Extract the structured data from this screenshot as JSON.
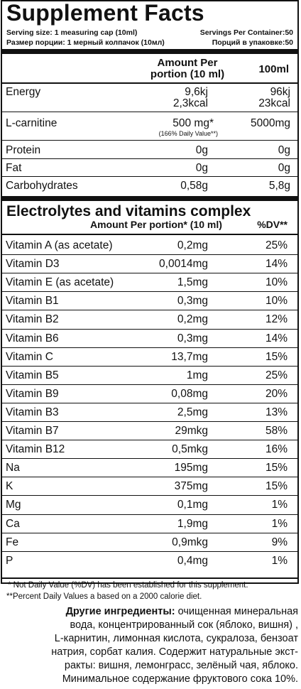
{
  "title": "Supplement Facts",
  "serving": {
    "size_en": "Serving size: 1 measuring cap (10ml)",
    "servings_en": "Servings Per Container:50",
    "size_ru": "Размер порции: 1 мерный колпачок (10мл)",
    "servings_ru": "Порций в упаковке:50"
  },
  "header": {
    "amount_line1": "Amount Per",
    "amount_line2": "portion (10 ml)",
    "per100": "100ml"
  },
  "nutrients": [
    {
      "name": "Energy",
      "amount1": "9,6kj",
      "amount2": "2,3kcal",
      "per100_1": "96kj",
      "per100_2": "23kcal"
    },
    {
      "name": "L-carnitine",
      "amount1": "500 mg*",
      "note": "(166% Daily Value**)",
      "per100_1": "5000mg"
    },
    {
      "name": "Protein",
      "amount1": "0g",
      "per100_1": "0g"
    },
    {
      "name": "Fat",
      "amount1": "0g",
      "per100_1": "0g"
    },
    {
      "name": "Carbohydrates",
      "amount1": "0,58g",
      "per100_1": "5,8g"
    }
  ],
  "electrolytes": {
    "title": "Electrolytes and vitamins complex",
    "col_amount": "Amount Per portion* (10 ml)",
    "col_dv": "%DV**",
    "rows": [
      {
        "name": "Vitamin A (as acetate)",
        "amount": "0,2mg",
        "dv": "25%"
      },
      {
        "name": "Vitamin D3",
        "amount": "0,0014mg",
        "dv": "14%"
      },
      {
        "name": "Vitamin E (as acetate)",
        "amount": "1,5mg",
        "dv": "10%"
      },
      {
        "name": "Vitamin B1",
        "amount": "0,3mg",
        "dv": "10%"
      },
      {
        "name": "Vitamin B2",
        "amount": "0,2mg",
        "dv": "12%"
      },
      {
        "name": "Vitamin B6",
        "amount": "0,3mg",
        "dv": "14%"
      },
      {
        "name": "Vitamin C",
        "amount": "13,7mg",
        "dv": "15%"
      },
      {
        "name": "Vitamin B5",
        "amount": "1mg",
        "dv": "25%"
      },
      {
        "name": "Vitamin B9",
        "amount": "0,08mg",
        "dv": "20%"
      },
      {
        "name": "Vitamin B3",
        "amount": "2,5mg",
        "dv": "13%"
      },
      {
        "name": "Vitamin B7",
        "amount": "29mkg",
        "dv": "58%"
      },
      {
        "name": "Vitamin B12",
        "amount": "0,5mkg",
        "dv": "16%"
      },
      {
        "name": "Na",
        "amount": "195mg",
        "dv": "15%"
      },
      {
        "name": "K",
        "amount": "375mg",
        "dv": "15%"
      },
      {
        "name": "Mg",
        "amount": "0,1mg",
        "dv": "1%"
      },
      {
        "name": "Ca",
        "amount": "1,9mg",
        "dv": "1%"
      },
      {
        "name": "Fe",
        "amount": "0,9mkg",
        "dv": "9%"
      },
      {
        "name": "P",
        "amount": "0,4mg",
        "dv": "1%"
      }
    ]
  },
  "footnotes": {
    "note1": "* Not Daily Value (%DV) has been established for this supplement.",
    "note2": "**Percent Daily Values a based on a 2000 calorie diet."
  },
  "ingredients": {
    "heading": "Другие ингредиенты:",
    "line1_rest": " очищенная минеральная",
    "line2": "вода, концентрированный сок (яблоко, вишня) ,",
    "line3": "L-карнитин, лимонная кислота, сукралоза, бензоат",
    "line4": "натрия, сорбат калия. Содержит натуральные экст-",
    "line5": "ракты: вишня, лемонграсс, зелёный чая, яблоко.",
    "line6": "Минимальное содержание фруктового сока 10%."
  }
}
